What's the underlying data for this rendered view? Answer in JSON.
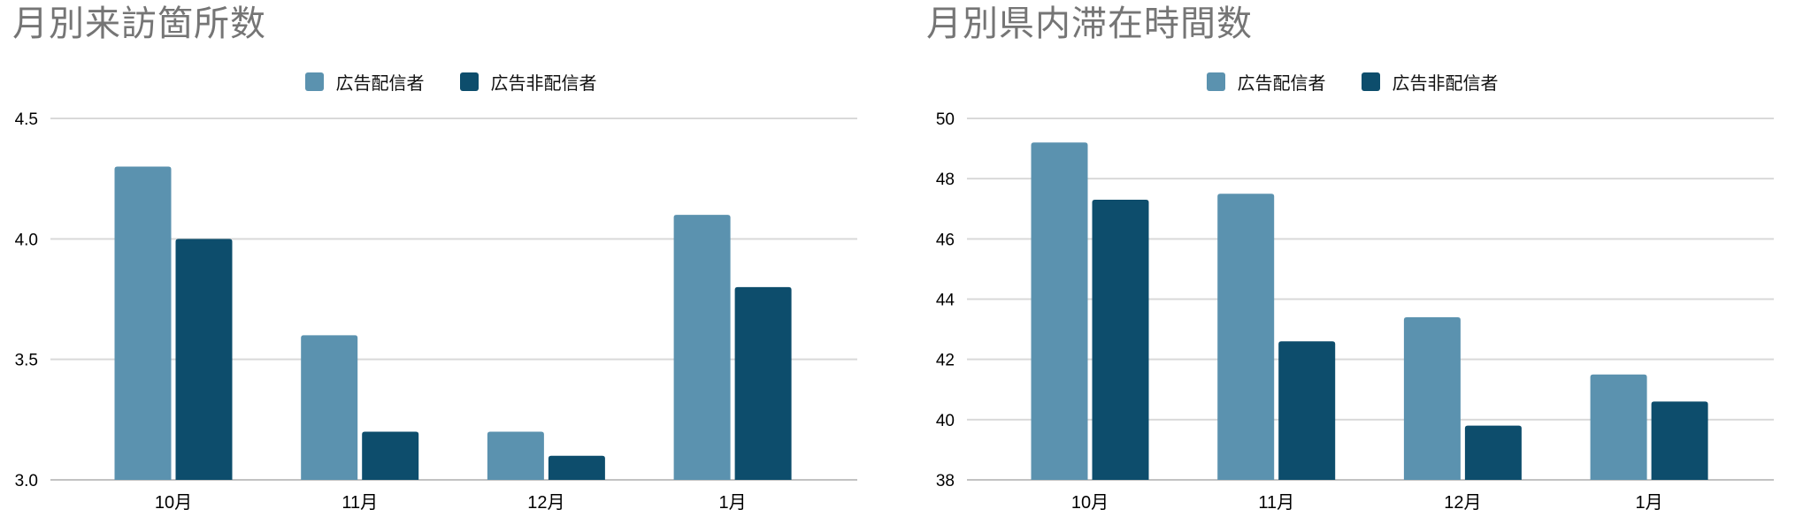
{
  "colors": {
    "series": [
      "#5b92af",
      "#0d4d6c"
    ],
    "title": "#757575",
    "axis_text": "#000000",
    "gridline": "#d9d9d9",
    "baseline": "#c2c2c2",
    "background": "#ffffff"
  },
  "chart_data": [
    {
      "type": "bar",
      "title": "月別来訪箇所数",
      "categories": [
        "10月",
        "11月",
        "12月",
        "1月"
      ],
      "series": [
        {
          "name": "広告配信者",
          "values": [
            4.3,
            3.6,
            3.2,
            4.1
          ]
        },
        {
          "name": "広告非配信者",
          "values": [
            4.0,
            3.2,
            3.1,
            3.8
          ]
        }
      ],
      "ylim": [
        3.0,
        4.5
      ],
      "y_ticks": [
        4.5,
        4.0,
        3.5,
        3.0
      ],
      "y_tick_labels": [
        "4.5",
        "4.0",
        "3.5",
        "3.0"
      ],
      "xlabel": "",
      "ylabel": "",
      "grid": true,
      "legend_position": "top-center"
    },
    {
      "type": "bar",
      "title": "月別県内滞在時間数",
      "categories": [
        "10月",
        "11月",
        "12月",
        "1月"
      ],
      "series": [
        {
          "name": "広告配信者",
          "values": [
            49.2,
            47.5,
            43.4,
            41.5
          ]
        },
        {
          "name": "広告非配信者",
          "values": [
            47.3,
            42.6,
            39.8,
            40.6
          ]
        }
      ],
      "ylim": [
        38,
        50
      ],
      "y_ticks": [
        50,
        48,
        46,
        44,
        42,
        40,
        38
      ],
      "y_tick_labels": [
        "50",
        "48",
        "46",
        "44",
        "42",
        "40",
        "38"
      ],
      "xlabel": "",
      "ylabel": "",
      "grid": true,
      "legend_position": "top-center"
    }
  ]
}
